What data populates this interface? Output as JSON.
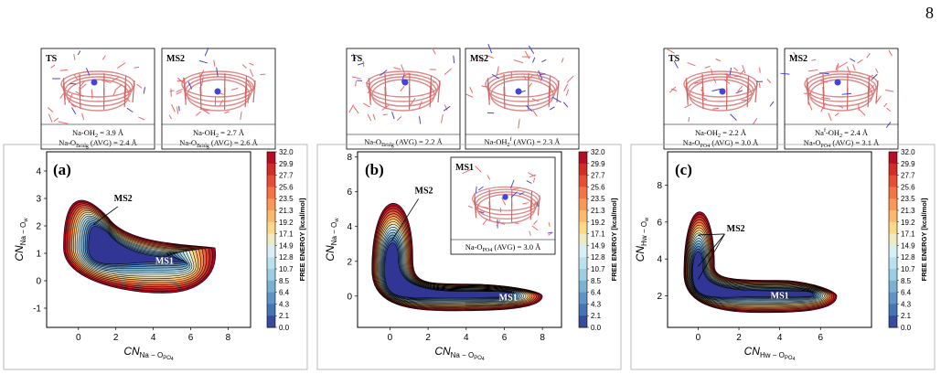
{
  "page_number": "8",
  "colorbar": {
    "ticks": [
      "32.0",
      "29.9",
      "27.7",
      "25.6",
      "23.5",
      "21.3",
      "19.2",
      "17.1",
      "14.9",
      "12.8",
      "10.7",
      "8.5",
      "6.4",
      "4.3",
      "2.1",
      "0.0"
    ],
    "label": "FREE ENERGY [kcal/mol]"
  },
  "panels": [
    {
      "label": "(a)",
      "ylabel": "CN",
      "ylabel_sub": "Na − O",
      "ylabel_subsub": "w",
      "xlabel": "CN",
      "xlabel_sub": "Na − O",
      "xlabel_subsub": "PO",
      "xlabel_subsubsub": "4",
      "xticks": [
        "0",
        "2",
        "4",
        "6",
        "8"
      ],
      "yticks": [
        "-1",
        "0",
        "1",
        "2",
        "3",
        "4"
      ],
      "annotations": [
        "MS2",
        "MS1"
      ],
      "insets": [
        {
          "title": "TS",
          "caption_lines": [
            "Na-OH₂ = 3.9 Å",
            "Na-O",
            [
              "Bridg",
              " (AVG) = 2.4 Å"
            ]
          ]
        },
        {
          "title": "MS2",
          "caption_lines": [
            "Na-OH₂ = 2.7 Å",
            "Na-O",
            [
              "Bridg",
              " (AVG) = 2.6 Å"
            ]
          ]
        }
      ]
    },
    {
      "label": "(b)",
      "ylabel": "CN",
      "ylabel_sub": "Na − O",
      "ylabel_subsub": "w",
      "xlabel": "CN",
      "xlabel_sub": "Na − O",
      "xlabel_subsub": "PO",
      "xlabel_subsubsub": "4",
      "xticks": [
        "0",
        "2",
        "4",
        "6",
        "8"
      ],
      "yticks": [
        "0",
        "2",
        "4",
        "6",
        "8"
      ],
      "annotations": [
        "MS2",
        "MS1"
      ],
      "insets": [
        {
          "title": "TS",
          "caption_lines": [
            "Na-O",
            [
              "Bridg",
              " (AVG) = 2.2 Å"
            ]
          ]
        },
        {
          "title": "MS2",
          "caption_lines": [
            "Na-OH₂",
            [
              "f",
              " (AVG) = 2.3 Å"
            ]
          ]
        },
        {
          "title": "MS1",
          "caption_lines": [
            "Na-O",
            [
              "PO4",
              " (AVG) = 3.0 Å"
            ]
          ]
        }
      ]
    },
    {
      "label": "(c)",
      "ylabel": "CN",
      "ylabel_sub": "Hw − O",
      "ylabel_subsub": "w",
      "xlabel": "CN",
      "xlabel_sub": "Hw − O",
      "xlabel_subsub": "PO",
      "xlabel_subsubsub": "4",
      "xticks": [
        "0",
        "2",
        "4",
        "6"
      ],
      "yticks": [
        "2",
        "4",
        "6",
        "8"
      ],
      "annotations": [
        "MS2",
        "MS1"
      ],
      "insets": [
        {
          "title": "TS",
          "caption_lines": [
            "Na-OH₂ = 2.2 Å",
            "Na-O",
            [
              "PO4",
              " (AVG) = 3.0 Å"
            ]
          ]
        },
        {
          "title": "MS2",
          "caption_lines": [
            "Na",
            [
              "f",
              " -OH₂ = 2.4 Å"
            ],
            "Na-O",
            [
              "PO4",
              " (AVG) = 3.1 Å"
            ]
          ]
        }
      ]
    }
  ]
}
